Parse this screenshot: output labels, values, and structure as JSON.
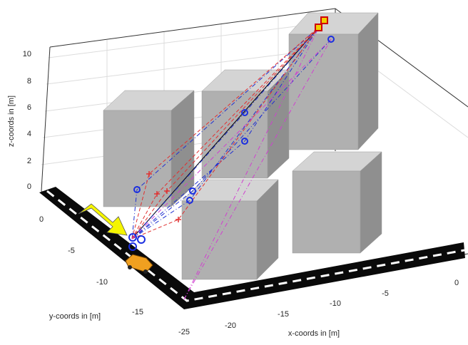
{
  "axes": {
    "z_label": "z-coords in [m]",
    "y_label": "y-coords in [m]",
    "x_label": "x-coords in [m]",
    "z_ticks": [
      0,
      2,
      4,
      6,
      8,
      10
    ],
    "y_ticks": [
      0,
      -5,
      -10,
      -15
    ],
    "x_ticks": [
      -25,
      -20,
      -15,
      -10,
      -5,
      0
    ]
  }
}
